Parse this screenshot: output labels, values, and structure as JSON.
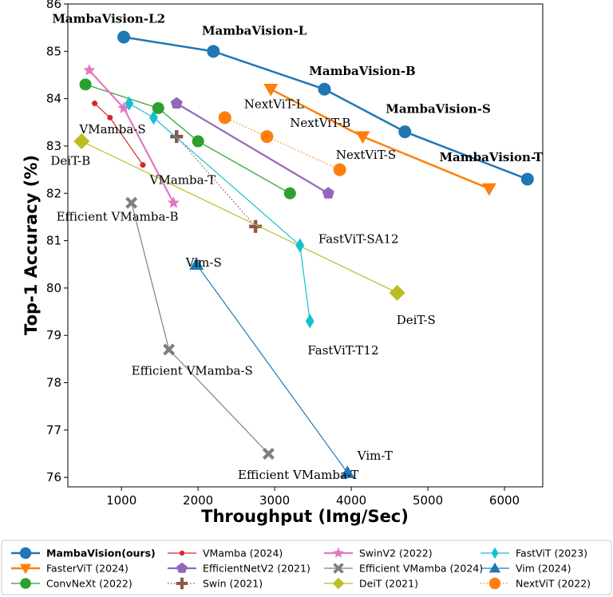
{
  "chart_data": {
    "type": "scatter",
    "title": "",
    "xlabel": "Throughput (Img/Sec)",
    "ylabel": "Top-1 Accuracy (%)",
    "xlim": [
      300,
      6500
    ],
    "ylim": [
      75.8,
      86
    ],
    "xticks": [
      1000,
      2000,
      3000,
      4000,
      5000,
      6000
    ],
    "yticks": [
      76,
      77,
      78,
      79,
      80,
      81,
      82,
      83,
      84,
      85,
      86
    ],
    "grid": false,
    "legend_position": "bottom",
    "series": [
      {
        "name": "MambaVision(ours)",
        "bold": true,
        "color": "#1f77b4",
        "marker": "circle",
        "line": "solid",
        "lw": 2.5,
        "ms": 8,
        "x": [
          1030,
          2200,
          3650,
          4700,
          6300
        ],
        "y": [
          85.3,
          85.0,
          84.2,
          83.3,
          82.3
        ]
      },
      {
        "name": "FasterViT (2024)",
        "color": "#ff7f0e",
        "marker": "triangle-down",
        "line": "solid",
        "lw": 2.5,
        "ms": 9,
        "x": [
          2950,
          4150,
          5800
        ],
        "y": [
          84.2,
          83.2,
          82.1
        ]
      },
      {
        "name": "ConvNeXt (2022)",
        "color": "#2ca02c",
        "marker": "circle",
        "line": "solid",
        "lw": 1.2,
        "ms": 7.5,
        "x": [
          530,
          1480,
          2000,
          3200
        ],
        "y": [
          84.3,
          83.8,
          83.1,
          82.0
        ]
      },
      {
        "name": "VMamba (2024)",
        "color": "#d62728",
        "marker": "circle",
        "line": "solid",
        "lw": 1.2,
        "ms": 3.5,
        "x": [
          650,
          850,
          1280
        ],
        "y": [
          83.9,
          83.6,
          82.6
        ]
      },
      {
        "name": "EfficientNetV2 (2021)",
        "color": "#9467bd",
        "marker": "pentagon",
        "line": "solid",
        "lw": 2.2,
        "ms": 8,
        "x": [
          1720,
          3700
        ],
        "y": [
          83.9,
          82.0
        ]
      },
      {
        "name": "Swin (2021)",
        "color": "#8c564b",
        "marker": "plus",
        "line": "dotted",
        "lw": 1.2,
        "ms": 8,
        "x": [
          1720,
          2750
        ],
        "y": [
          83.2,
          81.3
        ]
      },
      {
        "name": "SwinV2 (2022)",
        "color": "#e377c2",
        "marker": "star",
        "line": "solid",
        "lw": 2.2,
        "ms": 8,
        "x": [
          580,
          1030,
          1680
        ],
        "y": [
          84.6,
          83.8,
          81.8
        ]
      },
      {
        "name": "Efficient VMamba (2024)",
        "color": "#7f7f7f",
        "marker": "x",
        "line": "solid",
        "lw": 1.2,
        "ms": 7.5,
        "x": [
          1130,
          1620,
          2920
        ],
        "y": [
          81.8,
          78.7,
          76.5
        ]
      },
      {
        "name": "DeiT (2021)",
        "color": "#bcbd22",
        "marker": "diamond",
        "line": "solid",
        "lw": 1.2,
        "ms": 10,
        "x": [
          480,
          4600
        ],
        "y": [
          83.1,
          79.9
        ]
      },
      {
        "name": "FastViT (2023)",
        "color": "#17becf",
        "marker": "thin-diamond",
        "line": "solid",
        "lw": 1.2,
        "ms": 9,
        "x": [
          1100,
          1420,
          3330,
          3460
        ],
        "y": [
          83.9,
          83.6,
          80.9,
          79.3
        ]
      },
      {
        "name": "Vim (2024)",
        "color": "#1f77b4",
        "marker": "triangle-up",
        "line": "solid",
        "lw": 1.2,
        "ms": 9,
        "x": [
          1980,
          3950
        ],
        "y": [
          80.5,
          76.1
        ]
      },
      {
        "name": "NextViT (2022)",
        "color": "#ff7f0e",
        "marker": "circle",
        "line": "dotted",
        "lw": 1.2,
        "ms": 8,
        "x": [
          2350,
          2900,
          3850
        ],
        "y": [
          83.6,
          83.2,
          82.5
        ]
      }
    ],
    "annotations": [
      {
        "text": "MambaVision-L2",
        "x": 95,
        "y": 85.6,
        "bold": true
      },
      {
        "text": "MambaVision-L",
        "x": 2050,
        "y": 85.35,
        "bold": true
      },
      {
        "text": "MambaVision-B",
        "x": 3450,
        "y": 84.5,
        "bold": true
      },
      {
        "text": "MambaVision-S",
        "x": 4450,
        "y": 83.7,
        "bold": true
      },
      {
        "text": "MambaVision-T",
        "x": 5150,
        "y": 82.68,
        "bold": true
      },
      {
        "text": "NextViT-L",
        "x": 2600,
        "y": 83.8,
        "bold": false
      },
      {
        "text": "NextViT-B",
        "x": 3200,
        "y": 83.4,
        "bold": false
      },
      {
        "text": "NextViT-S",
        "x": 3800,
        "y": 82.73,
        "bold": false
      },
      {
        "text": "VMamba-S",
        "x": 450,
        "y": 83.27,
        "bold": false
      },
      {
        "text": "DeiT-B",
        "x": 75,
        "y": 82.6,
        "bold": false
      },
      {
        "text": "VMamba-T",
        "x": 1370,
        "y": 82.2,
        "bold": false
      },
      {
        "text": "Efficient VMamba-B",
        "x": 150,
        "y": 81.42,
        "bold": false
      },
      {
        "text": "FastViT-SA12",
        "x": 3570,
        "y": 80.95,
        "bold": false
      },
      {
        "text": "Vim-S",
        "x": 1840,
        "y": 80.45,
        "bold": false
      },
      {
        "text": "DeiT-S",
        "x": 4590,
        "y": 79.24,
        "bold": false
      },
      {
        "text": "FastViT-T12",
        "x": 3430,
        "y": 78.6,
        "bold": false
      },
      {
        "text": "Efficient VMamba-S",
        "x": 1130,
        "y": 78.17,
        "bold": false
      },
      {
        "text": "Efficient VMamba-T",
        "x": 2520,
        "y": 75.97,
        "bold": false
      },
      {
        "text": "Vim-T",
        "x": 4080,
        "y": 76.37,
        "bold": false
      }
    ]
  }
}
